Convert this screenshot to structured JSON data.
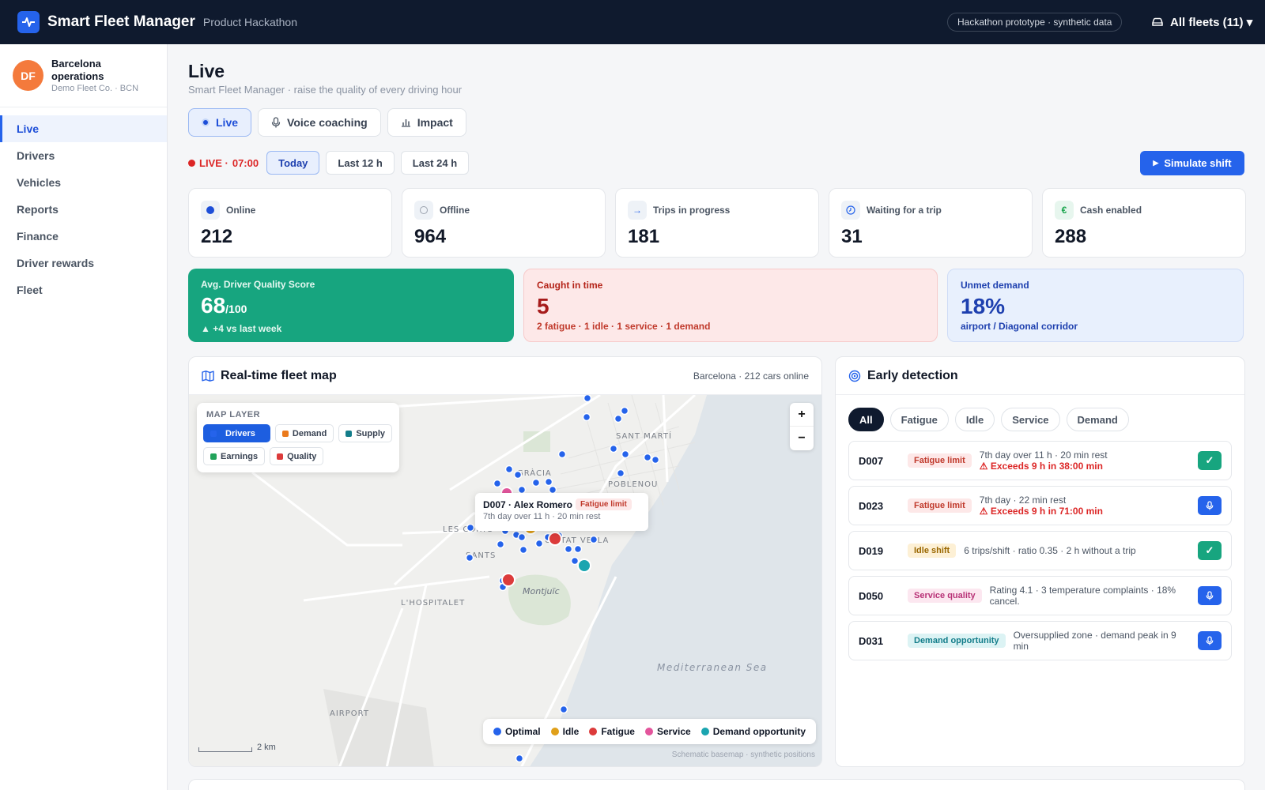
{
  "topbar": {
    "title": "Smart Fleet Manager",
    "subtitle": "Product Hackathon",
    "badge": "Hackathon prototype · synthetic data",
    "fleet_select": "All fleets (11) ▾"
  },
  "sidebar": {
    "avatar": "DF",
    "org_name": "Barcelona operations",
    "org_sub": "Demo Fleet Co. · BCN",
    "items": [
      {
        "label": "Live"
      },
      {
        "label": "Drivers"
      },
      {
        "label": "Vehicles"
      },
      {
        "label": "Reports"
      },
      {
        "label": "Finance"
      },
      {
        "label": "Driver rewards"
      },
      {
        "label": "Fleet"
      }
    ]
  },
  "page": {
    "title": "Live",
    "subtitle": "Smart Fleet Manager · raise the quality of every driving hour",
    "tabs": [
      {
        "label": "Live"
      },
      {
        "label": "Voice coaching"
      },
      {
        "label": "Impact"
      }
    ]
  },
  "timebar": {
    "live_label": "LIVE ·",
    "time": "07:00",
    "ranges": [
      "Today",
      "Last 12 h",
      "Last 24 h"
    ],
    "simulate": "Simulate shift"
  },
  "stats": [
    {
      "label": "Online",
      "value": "212"
    },
    {
      "label": "Offline",
      "value": "964"
    },
    {
      "label": "Trips in progress",
      "value": "181"
    },
    {
      "label": "Waiting for a trip",
      "value": "31"
    },
    {
      "label": "Cash enabled",
      "value": "288"
    }
  ],
  "kpis": {
    "quality": {
      "label": "Avg. Driver Quality Score",
      "value": "68",
      "unit": "/100",
      "sub": "▲ +4 vs last week"
    },
    "caught": {
      "label": "Caught in time",
      "value": "5",
      "sub": "2 fatigue · 1 idle · 1 service · 1 demand"
    },
    "demand": {
      "label": "Unmet demand",
      "value": "18%",
      "sub": "airport / Diagonal corridor"
    }
  },
  "map": {
    "title": "Real-time fleet map",
    "meta": "Barcelona · 212 cars online",
    "layer_title": "MAP LAYER",
    "layers": [
      "Drivers",
      "Demand",
      "Supply",
      "Earnings",
      "Quality"
    ],
    "zoom_in": "+",
    "zoom_out": "−",
    "labels": [
      "SANT MARTÍ",
      "GRÀCIA",
      "POBLENOU",
      "LES CORTS",
      "CIUTAT VELLA",
      "SANTS",
      "Montjuïc",
      "L'HOSPITALET",
      "Mediterranean Sea",
      "AIRPORT"
    ],
    "popup": {
      "title": "D007 · Alex Romero",
      "tag": "Fatigue limit",
      "sub": "7th day over 11 h · 20 min rest"
    },
    "legend": [
      "Optimal",
      "Idle",
      "Fatigue",
      "Service",
      "Demand opportunity"
    ],
    "scale": "2 km",
    "attribution": "Schematic basemap · synthetic positions",
    "colors": {
      "optimal": "#2563eb",
      "idle": "#e0a01a",
      "fatigue": "#dc3b3b",
      "service": "#e3559c",
      "demand": "#1ba5b0"
    }
  },
  "detection": {
    "title": "Early detection",
    "filters": [
      "All",
      "Fatigue",
      "Idle",
      "Service",
      "Demand"
    ],
    "rows": [
      {
        "id": "D007",
        "tag": "Fatigue limit",
        "desc": "7th day over 11 h · 20 min rest",
        "warn": "⚠ Exceeds 9 h in 38:00 min",
        "action": "✓"
      },
      {
        "id": "D023",
        "tag": "Fatigue limit",
        "desc": "7th day · 22 min rest",
        "warn": "⚠ Exceeds 9 h in 71:00 min",
        "action": "mic"
      },
      {
        "id": "D019",
        "tag": "Idle shift",
        "desc": "6 trips/shift · ratio 0.35 · 2 h without a trip",
        "warn": "",
        "action": "✓"
      },
      {
        "id": "D050",
        "tag": "Service quality",
        "desc": "Rating 4.1 · 3 temperature complaints · 18% cancel.",
        "warn": "",
        "action": "mic"
      },
      {
        "id": "D031",
        "tag": "Demand opportunity",
        "desc": "Oversupplied zone · demand peak in 9 min",
        "warn": "",
        "action": "mic"
      }
    ]
  }
}
